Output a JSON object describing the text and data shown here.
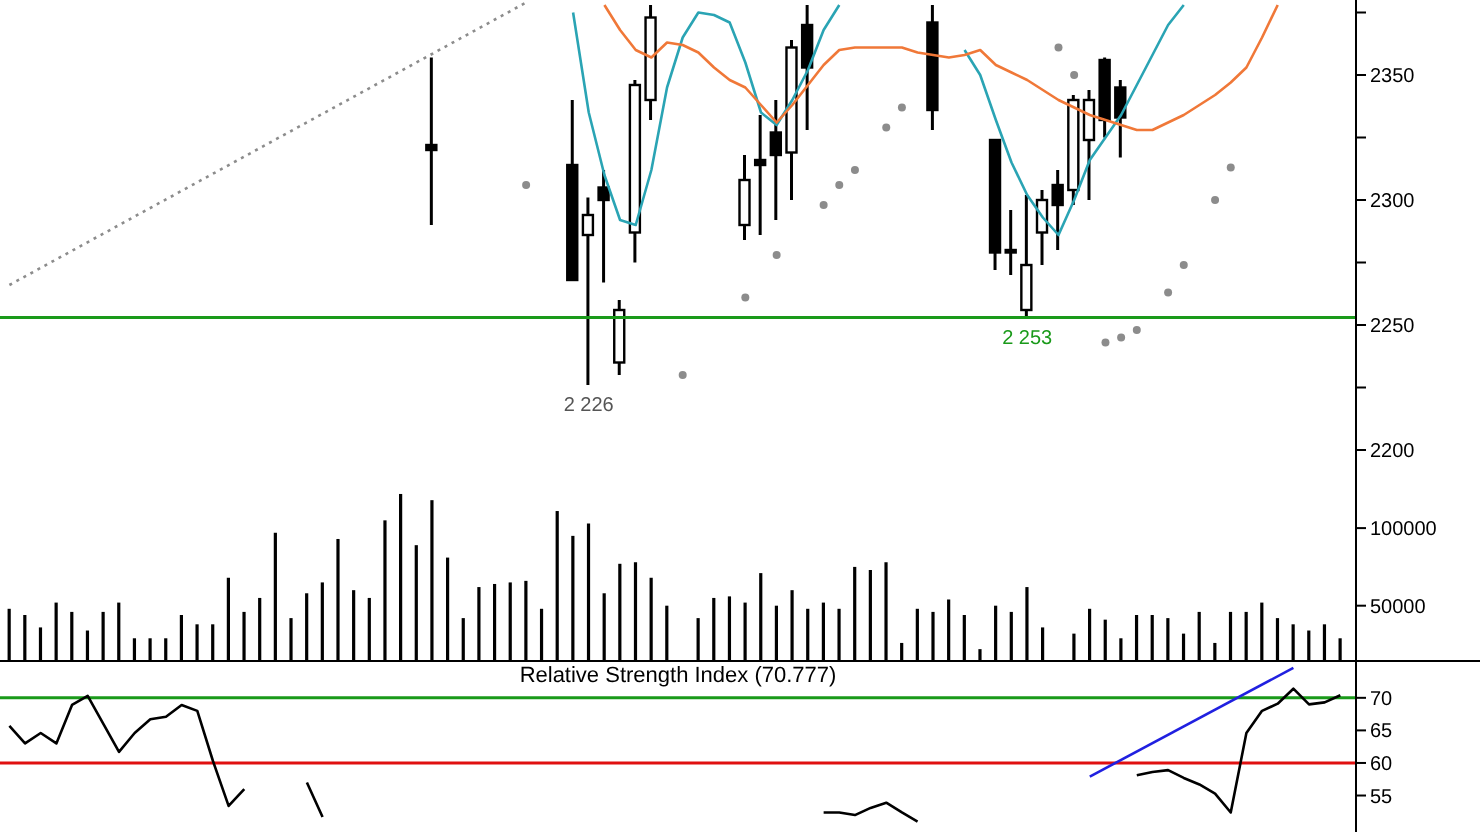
{
  "chart_data": [
    {
      "type": "candlestick",
      "categories": [
        null,
        null,
        null,
        null,
        null,
        null,
        null,
        null,
        null,
        null,
        null,
        null,
        null,
        null,
        null,
        null,
        null,
        null,
        null,
        null,
        null,
        null,
        null,
        null,
        null,
        null,
        null,
        null,
        null,
        null,
        null,
        null,
        null,
        null,
        null,
        null,
        null,
        null,
        null,
        null,
        null,
        null,
        null,
        null,
        null,
        null,
        null,
        null,
        null,
        null,
        null,
        null,
        null,
        null,
        null,
        null,
        null,
        null,
        null,
        null,
        null,
        null,
        null,
        null,
        null,
        null,
        null,
        null,
        null,
        null,
        null,
        null,
        null,
        null,
        null,
        null,
        null,
        null,
        null,
        null,
        null,
        null,
        null,
        null,
        null,
        null
      ],
      "ohlc": [
        null,
        null,
        null,
        null,
        null,
        null,
        null,
        null,
        null,
        null,
        null,
        null,
        null,
        null,
        null,
        null,
        null,
        null,
        null,
        null,
        null,
        null,
        null,
        null,
        null,
        null,
        null,
        [
          2322,
          2357,
          2290,
          2320
        ],
        null,
        null,
        null,
        null,
        null,
        null,
        null,
        null,
        [
          2314,
          2340,
          2268,
          2268
        ],
        [
          2286,
          2301,
          2226,
          2294
        ],
        [
          2305,
          2312,
          2267,
          2300
        ],
        [
          2235,
          2260,
          2230,
          2256
        ],
        [
          2287,
          2348,
          2275,
          2346
        ],
        [
          2340,
          2378,
          2332,
          2373
        ],
        null,
        null,
        null,
        null,
        null,
        [
          2290,
          2318,
          2284,
          2308
        ],
        [
          2316,
          2334,
          2286,
          2314
        ],
        [
          2327,
          2340,
          2292,
          2318
        ],
        [
          2319,
          2364,
          2300,
          2361
        ],
        [
          2370,
          2378,
          2328,
          2353
        ],
        null,
        null,
        null,
        null,
        null,
        null,
        null,
        [
          2371,
          2378,
          2328,
          2336
        ],
        null,
        null,
        null,
        [
          2324,
          2324,
          2272,
          2279
        ],
        [
          2280,
          2296,
          2270,
          2279
        ],
        [
          2256,
          2302,
          2253,
          2274
        ],
        [
          2287,
          2304,
          2274,
          2300
        ],
        [
          2306,
          2312,
          2280,
          2298
        ],
        [
          2304,
          2342,
          2298,
          2340
        ],
        [
          2324,
          2344,
          2300,
          2340
        ],
        [
          2356,
          2357,
          2325,
          2332
        ],
        [
          2345,
          2348,
          2317,
          2333
        ],
        null,
        null,
        null,
        null,
        null,
        null,
        null,
        null,
        null,
        null,
        null,
        null,
        null,
        null
      ],
      "color": "#000000",
      "series": [
        {
          "type": "line",
          "color": "#2aa4b4",
          "values": [
            null,
            null,
            null,
            null,
            null,
            null,
            null,
            null,
            null,
            null,
            null,
            null,
            null,
            null,
            null,
            null,
            null,
            null,
            null,
            null,
            null,
            null,
            null,
            null,
            null,
            null,
            null,
            null,
            null,
            null,
            null,
            null,
            null,
            null,
            null,
            null,
            2375,
            2335,
            2310,
            2292,
            2290,
            2312,
            2345,
            2365,
            2375,
            2374,
            2371,
            2355,
            2335,
            2330,
            2340,
            2352,
            2368,
            2378,
            null,
            null,
            null,
            null,
            null,
            null,
            null,
            2360,
            2350,
            2332,
            2315,
            2302,
            2293,
            2286,
            2300,
            2316,
            2325,
            2334,
            2346,
            2358,
            2370,
            2378,
            null,
            null,
            null,
            null,
            null,
            null,
            null,
            null,
            null,
            null
          ]
        },
        {
          "type": "line",
          "color": "#f07838",
          "values": [
            null,
            null,
            null,
            null,
            null,
            null,
            null,
            null,
            null,
            null,
            null,
            null,
            null,
            null,
            null,
            null,
            null,
            null,
            null,
            null,
            null,
            null,
            null,
            null,
            null,
            null,
            null,
            null,
            null,
            null,
            null,
            null,
            null,
            null,
            null,
            null,
            null,
            null,
            2378,
            2368,
            2360,
            2357,
            2363,
            2362,
            2359,
            2353,
            2348,
            2345,
            2338,
            2331,
            2338,
            2346,
            2354,
            2360,
            2361,
            2361,
            2361,
            2361,
            2359,
            2358,
            2357,
            2358,
            2360,
            2354,
            2351,
            2348,
            2344,
            2340,
            2337,
            2334,
            2332,
            2330,
            2328,
            2328,
            2331,
            2334,
            2338,
            2342,
            2347,
            2353,
            2365,
            2378,
            null,
            null,
            null,
            null
          ]
        },
        {
          "type": "line",
          "color": "#8c8c8c",
          "line_style": "dotted",
          "values": [
            2266,
            null,
            null,
            null,
            null,
            null,
            null,
            null,
            null,
            null,
            null,
            null,
            null,
            null,
            null,
            null,
            null,
            null,
            null,
            null,
            null,
            null,
            null,
            null,
            null,
            null,
            null,
            null,
            null,
            null,
            null,
            null,
            null,
            2379,
            null,
            null,
            null,
            null,
            null,
            null,
            null,
            null,
            null,
            null,
            null,
            null,
            null,
            null,
            null,
            null,
            null,
            null,
            null,
            null,
            null,
            null,
            null,
            null,
            null,
            null,
            null,
            null,
            null,
            null,
            null,
            null,
            null,
            null,
            null,
            null,
            null,
            null,
            null,
            null,
            null,
            null,
            null,
            null,
            null,
            null,
            null,
            null,
            null,
            null,
            null,
            null
          ]
        },
        {
          "type": "scatter",
          "color": "#8c8c8c",
          "values": [
            null,
            null,
            null,
            null,
            null,
            null,
            null,
            null,
            null,
            null,
            null,
            null,
            null,
            null,
            null,
            null,
            null,
            null,
            null,
            null,
            null,
            null,
            null,
            null,
            null,
            null,
            null,
            null,
            null,
            null,
            null,
            null,
            null,
            2306,
            null,
            null,
            null,
            null,
            null,
            null,
            null,
            null,
            null,
            2230,
            null,
            null,
            null,
            2261,
            null,
            2278,
            null,
            null,
            2298,
            2306,
            2312,
            null,
            2329,
            2337,
            null,
            null,
            null,
            null,
            null,
            null,
            null,
            null,
            null,
            2361,
            2350,
            null,
            2243,
            2245,
            2248,
            null,
            2263,
            2274,
            null,
            2300,
            2313,
            null,
            null,
            null,
            null,
            null,
            null,
            null
          ]
        }
      ],
      "ylim": [
        2188,
        2380
      ],
      "yticks": [
        2200,
        {
          "value": 2225,
          "label": null
        },
        2250,
        {
          "value": 2275,
          "label": null
        },
        2300,
        {
          "value": 2325,
          "label": null
        },
        2350,
        {
          "value": 2375,
          "label": null
        }
      ],
      "ref_lines": [
        {
          "axis": "y",
          "value": 2253,
          "color": "#1a9a1a"
        }
      ],
      "annotations": [
        {
          "text": "2 226",
          "y": 2226
        },
        {
          "text": "2 253",
          "y": 2253
        }
      ],
      "tick_labels": "y"
    },
    {
      "type": "bar",
      "categories": [
        null,
        null,
        null,
        null,
        null,
        null,
        null,
        null,
        null,
        null,
        null,
        null,
        null,
        null,
        null,
        null,
        null,
        null,
        null,
        null,
        null,
        null,
        null,
        null,
        null,
        null,
        null,
        null,
        null,
        null,
        null,
        null,
        null,
        null,
        null,
        null,
        null,
        null,
        null,
        null,
        null,
        null,
        null,
        null,
        null,
        null,
        null,
        null,
        null,
        null,
        null,
        null,
        null,
        null,
        null,
        null,
        null,
        null,
        null,
        null,
        null,
        null,
        null,
        null,
        null,
        null,
        null,
        null,
        null,
        null,
        null,
        null,
        null,
        null,
        null,
        null,
        null,
        null,
        null,
        null,
        null,
        null,
        null,
        null,
        null,
        null
      ],
      "values": [
        48000,
        44000,
        36000,
        52000,
        46000,
        34000,
        46000,
        52000,
        29000,
        29000,
        29000,
        44000,
        38000,
        38000,
        68000,
        46000,
        55000,
        97000,
        42000,
        58000,
        65000,
        93000,
        60000,
        55000,
        105000,
        122000,
        89000,
        118000,
        81000,
        42000,
        62000,
        64000,
        65000,
        66000,
        48000,
        111000,
        95000,
        103000,
        58000,
        77000,
        78000,
        68000,
        50000,
        null,
        42000,
        55000,
        56000,
        52000,
        71000,
        50000,
        60000,
        48000,
        52000,
        48000,
        75000,
        73000,
        78000,
        26000,
        48000,
        46000,
        54000,
        44000,
        22000,
        50000,
        46000,
        62000,
        36000,
        null,
        32000,
        48000,
        41000,
        29000,
        44000,
        44000,
        42000,
        32000,
        46000,
        26000,
        46000,
        46000,
        52000,
        42000,
        38000,
        34000,
        38000,
        29000
      ],
      "color": "#000000",
      "ylim": [
        15000,
        131000
      ],
      "yticks": [
        50000,
        100000
      ],
      "tick_labels": "y"
    },
    {
      "type": "line",
      "title": "Relative Strength Index (70.777)",
      "categories": [
        null,
        null,
        null,
        null,
        null,
        null,
        null,
        null,
        null,
        null,
        null,
        null,
        null,
        null,
        null,
        null,
        null,
        null,
        null,
        null,
        null,
        null,
        null,
        null,
        null,
        null,
        null,
        null,
        null,
        null,
        null,
        null,
        null,
        null,
        null,
        null,
        null,
        null,
        null,
        null,
        null,
        null,
        null,
        null,
        null,
        null,
        null,
        null,
        null,
        null,
        null,
        null,
        null,
        null,
        null,
        null,
        null,
        null,
        null,
        null,
        null,
        null,
        null,
        null,
        null,
        null,
        null,
        null,
        null,
        null,
        null,
        null,
        null,
        null,
        null,
        null,
        null,
        null,
        null,
        null,
        null,
        null,
        null,
        null,
        null,
        null
      ],
      "series": [
        {
          "color": "#000000",
          "values": [
            65.7,
            63,
            64.6,
            63,
            68.9,
            70.3,
            66,
            61.7,
            64.6,
            66.7,
            67.1,
            68.9,
            68,
            60.3,
            53.4,
            56,
            null,
            null,
            null,
            57,
            51.7,
            null,
            null,
            null,
            null,
            null,
            null,
            null,
            null,
            null,
            null,
            null,
            null,
            null,
            null,
            null,
            null,
            null,
            null,
            null,
            null,
            null,
            null,
            null,
            null,
            null,
            null,
            null,
            null,
            null,
            null,
            null,
            52.4,
            52.4,
            52,
            53.1,
            53.9,
            52.4,
            51,
            null,
            null,
            null,
            null,
            null,
            null,
            null,
            null,
            null,
            null,
            null,
            null,
            null,
            58.1,
            58.6,
            58.9,
            57.7,
            56.7,
            55.3,
            52.4,
            64.6,
            68,
            69.1,
            71.4,
            69,
            69.3,
            70.4
          ]
        },
        {
          "color": "#2020e0",
          "values": [
            null,
            null,
            null,
            null,
            null,
            null,
            null,
            null,
            null,
            null,
            null,
            null,
            null,
            null,
            null,
            null,
            null,
            null,
            null,
            null,
            null,
            null,
            null,
            null,
            null,
            null,
            null,
            null,
            null,
            null,
            null,
            null,
            null,
            null,
            null,
            null,
            null,
            null,
            null,
            null,
            null,
            null,
            null,
            null,
            null,
            null,
            null,
            null,
            null,
            null,
            null,
            null,
            null,
            null,
            null,
            null,
            null,
            null,
            null,
            null,
            null,
            null,
            null,
            null,
            null,
            null,
            null,
            null,
            null,
            57.9,
            null,
            null,
            null,
            null,
            null,
            null,
            null,
            null,
            null,
            null,
            null,
            null,
            74.6,
            null,
            null,
            null
          ]
        }
      ],
      "ylim": [
        49.4,
        75.5
      ],
      "yticks": [
        55,
        60,
        65,
        70
      ],
      "ref_lines": [
        {
          "axis": "y",
          "value": 70,
          "color": "#1a9a1a"
        },
        {
          "axis": "y",
          "value": 60,
          "color": "#e01010"
        }
      ],
      "tick_labels": "y"
    }
  ]
}
